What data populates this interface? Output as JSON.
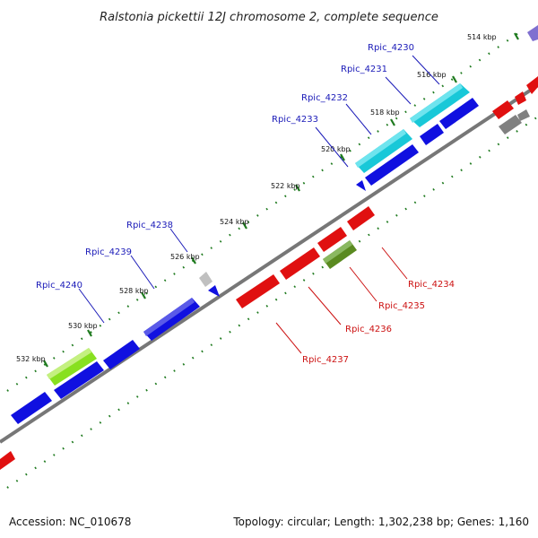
{
  "title": "Ralstonia pickettii 12J chromosome 2, complete sequence",
  "footer": {
    "accession": "Accession: NC_010678",
    "summary": "Topology: circular; Length: 1,302,238 bp; Genes: 1,160"
  },
  "colors": {
    "axis": "#777777",
    "ticks": "#1e7a1e",
    "forward_label": "#1a1ab8",
    "reverse_label": "#cc1111",
    "blue": "#1010e0",
    "red": "#e01010",
    "cyan": "#18c8d8",
    "light_green": "#88e020",
    "olive": "#5a8a20",
    "gray": "#808080",
    "light_gray": "#c0c0c0",
    "violet": "#8070d0"
  },
  "scale_labels": [
    "514 kbp",
    "516 kbp",
    "518 kbp",
    "520 kbp",
    "522 kbp",
    "524 kbp",
    "526 kbp",
    "528 kbp",
    "530 kbp",
    "532 kbp"
  ],
  "forward_gene_labels": [
    "Rpic_4230",
    "Rpic_4231",
    "Rpic_4232",
    "Rpic_4233",
    "Rpic_4238",
    "Rpic_4239",
    "Rpic_4240"
  ],
  "reverse_gene_labels": [
    "Rpic_4234",
    "Rpic_4235",
    "Rpic_4236",
    "Rpic_4237"
  ]
}
